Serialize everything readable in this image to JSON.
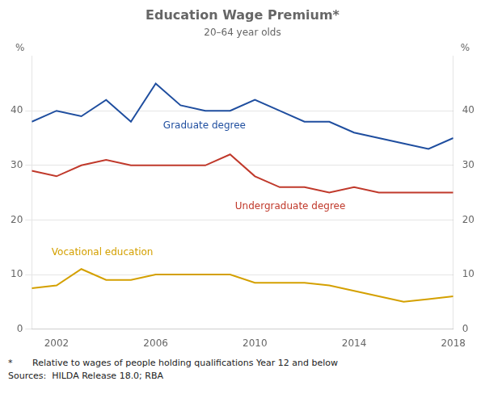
{
  "chart_data": {
    "type": "line",
    "title": "Education Wage Premium*",
    "subtitle": "20–64 year olds",
    "ylabel": "%",
    "y2label": "%",
    "series": [
      {
        "name": "Graduate degree",
        "color": "#1F4E9F",
        "x": [
          2001,
          2002,
          2003,
          2004,
          2005,
          2006,
          2007,
          2008,
          2009,
          2010,
          2011,
          2012,
          2013,
          2014,
          2015,
          2016,
          2017,
          2018
        ],
        "values": [
          38,
          40,
          39,
          42,
          38,
          45,
          41,
          40,
          40,
          42,
          40,
          38,
          38,
          36,
          35,
          34,
          33,
          35
        ]
      },
      {
        "name": "Undergraduate degree",
        "color": "#C0392B",
        "x": [
          2001,
          2002,
          2003,
          2004,
          2005,
          2006,
          2007,
          2008,
          2009,
          2010,
          2011,
          2012,
          2013,
          2014,
          2015,
          2016,
          2017,
          2018
        ],
        "values": [
          29,
          28,
          30,
          31,
          30,
          30,
          30,
          30,
          32,
          28,
          26,
          26,
          25,
          26,
          25,
          25,
          25,
          25
        ]
      },
      {
        "name": "Vocational education",
        "color": "#D4A000",
        "x": [
          2001,
          2002,
          2003,
          2004,
          2005,
          2006,
          2007,
          2008,
          2009,
          2010,
          2011,
          2012,
          2013,
          2014,
          2015,
          2016,
          2017,
          2018
        ],
        "values": [
          7.5,
          8,
          11,
          9,
          9,
          10,
          10,
          10,
          10,
          8.5,
          8.5,
          8.5,
          8,
          7,
          6,
          5,
          5.5,
          6
        ]
      }
    ],
    "annotations": [
      {
        "text": "Graduate degree",
        "x": 2006.3,
        "y": 36.8,
        "color": "#1F4E9F"
      },
      {
        "text": "Undergraduate degree",
        "x": 2009.2,
        "y": 22.0,
        "color": "#C0392B"
      },
      {
        "text": "Vocational education",
        "x": 2001.8,
        "y": 13.5,
        "color": "#D4A000"
      }
    ],
    "xlim": [
      2001,
      2018
    ],
    "xticks": [
      2002,
      2006,
      2010,
      2014,
      2018
    ],
    "ylim": [
      0,
      50
    ],
    "yticks": [
      0,
      10,
      20,
      30,
      40
    ],
    "y2lim": [
      0,
      50
    ],
    "y2ticks": [
      0,
      10,
      20,
      30,
      40
    ],
    "grid": "y",
    "footnotes": [
      "*       Relative to wages of people holding qualifications Year 12 and below",
      "Sources:  HILDA Release 18.0; RBA"
    ]
  }
}
